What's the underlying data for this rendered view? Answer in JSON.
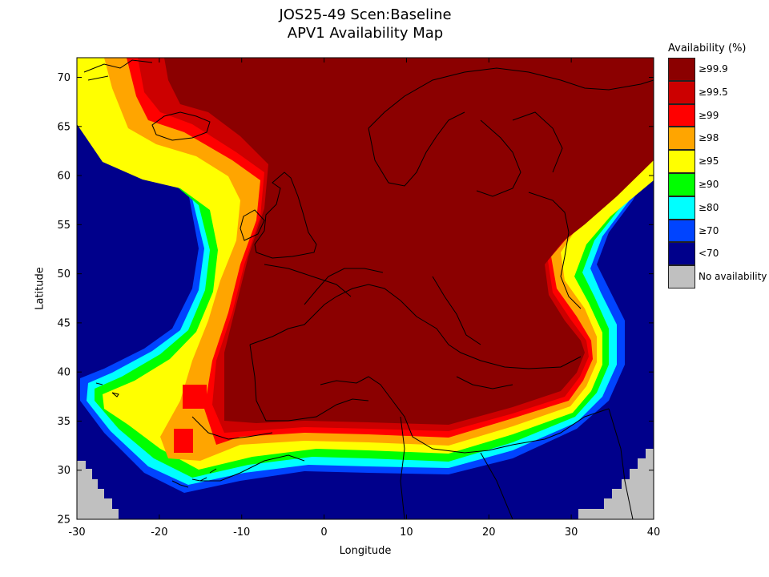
{
  "title": "JOS25-49 Scen:Baseline",
  "subtitle": "APV1 Availability Map",
  "xlabel": "Longitude",
  "ylabel": "Latitude",
  "legend": {
    "title": "Availability (%)",
    "items": [
      {
        "label": "≥99.9",
        "color": "#8b0000"
      },
      {
        "label": "≥99.5",
        "color": "#cc0000"
      },
      {
        "label": "≥99",
        "color": "#ff0000"
      },
      {
        "label": "≥98",
        "color": "#ffa500"
      },
      {
        "label": "≥95",
        "color": "#ffff00"
      },
      {
        "label": "≥90",
        "color": "#00ff00"
      },
      {
        "label": "≥80",
        "color": "#00ffff"
      },
      {
        "label": "≥70",
        "color": "#0044ff"
      },
      {
        "label": "<70",
        "color": "#00008b"
      },
      {
        "label": "No availability",
        "color": "#c0c0c0"
      }
    ]
  },
  "chart_data": {
    "type": "heatmap",
    "xlim": [
      -30,
      40
    ],
    "ylim": [
      25,
      72
    ],
    "xticks": [
      -30,
      -20,
      -10,
      0,
      10,
      20,
      30,
      40
    ],
    "yticks": [
      25,
      30,
      35,
      40,
      45,
      50,
      55,
      60,
      65,
      70
    ]
  }
}
